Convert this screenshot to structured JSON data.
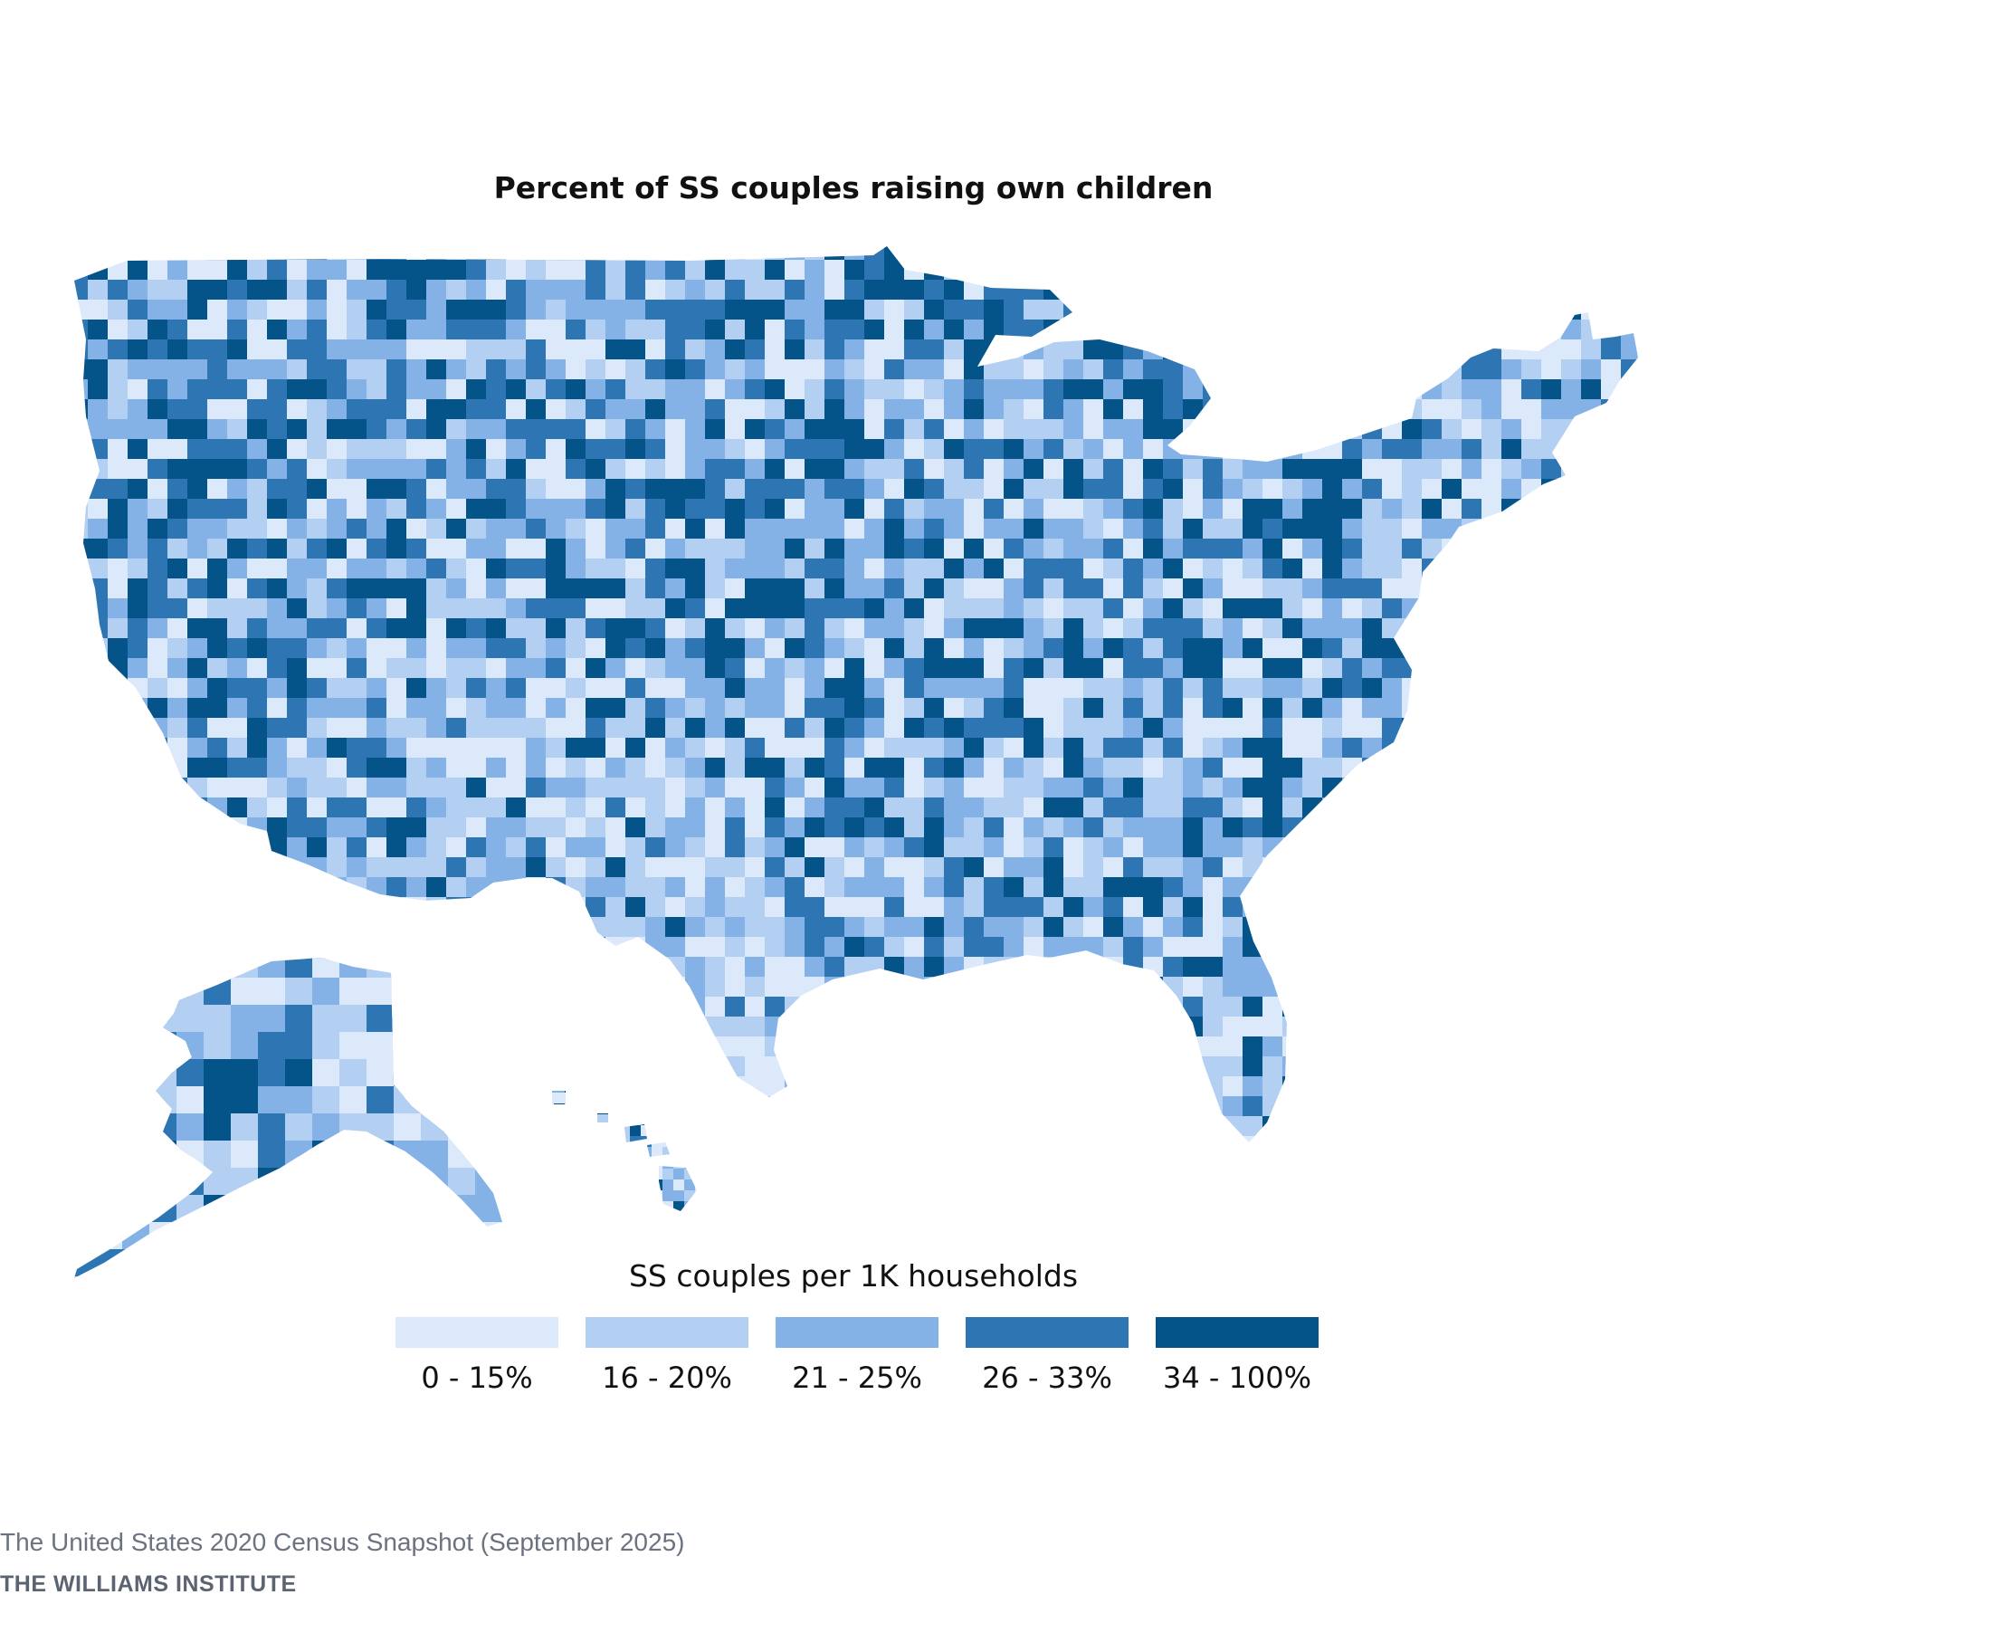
{
  "map": {
    "title": "Percent of SS couples raising own children",
    "regions": [
      "contiguous-us",
      "alaska",
      "hawaii"
    ]
  },
  "legend": {
    "title": "SS couples per 1K households",
    "items": [
      {
        "label": "0 - 15%",
        "color": "#dbe9fb"
      },
      {
        "label": "16 - 20%",
        "color": "#b3d0f2"
      },
      {
        "label": "21 - 25%",
        "color": "#85b2e6"
      },
      {
        "label": "26 - 33%",
        "color": "#2e75b4"
      },
      {
        "label": "34 - 100%",
        "color": "#04548a"
      }
    ]
  },
  "footer": {
    "source": "The United States 2020 Census Snapshot (September 2025)",
    "org": "THE WILLIAMS INSTITUTE"
  }
}
